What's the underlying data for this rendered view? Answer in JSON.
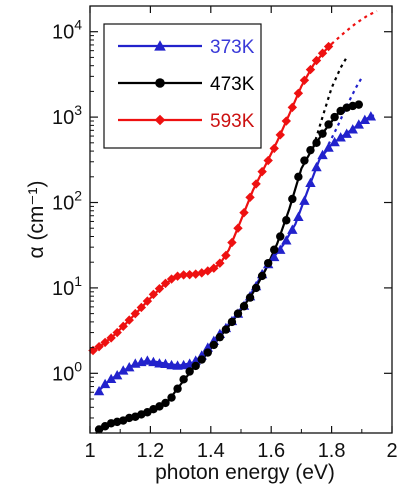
{
  "chart_data": {
    "type": "scatter",
    "xlabel": "photon energy (eV)",
    "ylabel": "α (cm⁻¹)",
    "x_scale": "linear",
    "y_scale": "log",
    "xlim": [
      1.0,
      2.0
    ],
    "ylim": [
      0.2,
      20000
    ],
    "x_ticks": [
      1.0,
      1.2,
      1.4,
      1.6,
      1.8,
      2.0
    ],
    "x_tick_labels": [
      "1",
      "1.2",
      "1.4",
      "1.6",
      "1.8",
      "2"
    ],
    "y_ticks": [
      1,
      10,
      100,
      1000,
      10000
    ],
    "y_tick_labels": [
      {
        "base": "10",
        "exp": "0"
      },
      {
        "base": "10",
        "exp": "1"
      },
      {
        "base": "10",
        "exp": "2"
      },
      {
        "base": "10",
        "exp": "3"
      },
      {
        "base": "10",
        "exp": "4"
      }
    ],
    "grid": false,
    "legend_position": "top-left",
    "series": [
      {
        "name": "373K",
        "color": "#2222cc",
        "label_color": "#3a3ad8",
        "marker": "triangle",
        "points": [
          [
            1.03,
            0.62
          ],
          [
            1.05,
            0.75
          ],
          [
            1.07,
            0.86
          ],
          [
            1.09,
            0.95
          ],
          [
            1.11,
            1.08
          ],
          [
            1.13,
            1.18
          ],
          [
            1.15,
            1.3
          ],
          [
            1.17,
            1.36
          ],
          [
            1.19,
            1.41
          ],
          [
            1.21,
            1.36
          ],
          [
            1.23,
            1.31
          ],
          [
            1.25,
            1.29
          ],
          [
            1.27,
            1.25
          ],
          [
            1.29,
            1.23
          ],
          [
            1.31,
            1.25
          ],
          [
            1.33,
            1.3
          ],
          [
            1.35,
            1.41
          ],
          [
            1.37,
            1.62
          ],
          [
            1.39,
            2.0
          ],
          [
            1.41,
            2.4
          ],
          [
            1.43,
            2.9
          ],
          [
            1.45,
            3.4
          ],
          [
            1.47,
            4.1
          ],
          [
            1.49,
            5.0
          ],
          [
            1.51,
            6.2
          ],
          [
            1.53,
            8.0
          ],
          [
            1.55,
            10.5
          ],
          [
            1.57,
            14.5
          ],
          [
            1.59,
            19.0
          ],
          [
            1.61,
            23.0
          ],
          [
            1.63,
            28.0
          ],
          [
            1.65,
            36.0
          ],
          [
            1.67,
            48.0
          ],
          [
            1.69,
            68.0
          ],
          [
            1.71,
            105.0
          ],
          [
            1.73,
            170.0
          ],
          [
            1.75,
            260.0
          ],
          [
            1.77,
            360.0
          ],
          [
            1.79,
            440.0
          ],
          [
            1.81,
            510.0
          ],
          [
            1.83,
            580.0
          ],
          [
            1.85,
            640.0
          ],
          [
            1.87,
            720.0
          ],
          [
            1.89,
            820.0
          ],
          [
            1.91,
            930.0
          ],
          [
            1.93,
            1020.0
          ]
        ],
        "fit": [
          [
            1.02,
            0.58
          ],
          [
            1.06,
            0.8
          ],
          [
            1.1,
            1.02
          ],
          [
            1.14,
            1.23
          ],
          [
            1.18,
            1.38
          ],
          [
            1.22,
            1.36
          ],
          [
            1.26,
            1.28
          ],
          [
            1.3,
            1.24
          ],
          [
            1.34,
            1.33
          ],
          [
            1.37,
            1.6
          ],
          [
            1.4,
            2.15
          ],
          [
            1.44,
            3.1
          ],
          [
            1.48,
            4.5
          ],
          [
            1.52,
            7.0
          ],
          [
            1.56,
            12.5
          ],
          [
            1.6,
            21.0
          ],
          [
            1.64,
            32.0
          ],
          [
            1.68,
            56.0
          ],
          [
            1.72,
            135.0
          ],
          [
            1.76,
            320.0
          ],
          [
            1.8,
            480.0
          ],
          [
            1.84,
            610.0
          ],
          [
            1.88,
            770.0
          ],
          [
            1.92,
            980.0
          ],
          [
            1.94,
            1050.0
          ]
        ],
        "extrapolation": [
          [
            1.79,
            480.0
          ],
          [
            1.82,
            780.0
          ],
          [
            1.85,
            1350.0
          ],
          [
            1.88,
            2200.0
          ],
          [
            1.9,
            2900.0
          ]
        ]
      },
      {
        "name": "473K",
        "color": "#000000",
        "label_color": "#000000",
        "marker": "circle",
        "points": [
          [
            1.03,
            0.22
          ],
          [
            1.05,
            0.24
          ],
          [
            1.07,
            0.26
          ],
          [
            1.09,
            0.27
          ],
          [
            1.11,
            0.28
          ],
          [
            1.13,
            0.3
          ],
          [
            1.15,
            0.31
          ],
          [
            1.17,
            0.33
          ],
          [
            1.19,
            0.35
          ],
          [
            1.21,
            0.38
          ],
          [
            1.23,
            0.41
          ],
          [
            1.25,
            0.45
          ],
          [
            1.27,
            0.52
          ],
          [
            1.29,
            0.66
          ],
          [
            1.31,
            0.85
          ],
          [
            1.33,
            1.05
          ],
          [
            1.35,
            1.22
          ],
          [
            1.37,
            1.45
          ],
          [
            1.39,
            1.75
          ],
          [
            1.41,
            2.15
          ],
          [
            1.43,
            2.65
          ],
          [
            1.45,
            3.25
          ],
          [
            1.47,
            4.0
          ],
          [
            1.49,
            5.0
          ],
          [
            1.51,
            6.1
          ],
          [
            1.53,
            7.7
          ],
          [
            1.55,
            10.0
          ],
          [
            1.57,
            13.8
          ],
          [
            1.59,
            19.5
          ],
          [
            1.61,
            28.0
          ],
          [
            1.63,
            40.0
          ],
          [
            1.65,
            62.0
          ],
          [
            1.67,
            110.0
          ],
          [
            1.69,
            200.0
          ],
          [
            1.71,
            310.0
          ],
          [
            1.73,
            410.0
          ],
          [
            1.75,
            500.0
          ],
          [
            1.77,
            640.0
          ],
          [
            1.79,
            820.0
          ],
          [
            1.81,
            1000.0
          ],
          [
            1.83,
            1180.0
          ],
          [
            1.85,
            1290.0
          ],
          [
            1.87,
            1350.0
          ],
          [
            1.89,
            1400.0
          ]
        ],
        "fit": [
          [
            1.02,
            0.2
          ],
          [
            1.06,
            0.24
          ],
          [
            1.1,
            0.27
          ],
          [
            1.14,
            0.3
          ],
          [
            1.18,
            0.34
          ],
          [
            1.22,
            0.39
          ],
          [
            1.26,
            0.48
          ],
          [
            1.3,
            0.74
          ],
          [
            1.34,
            1.12
          ],
          [
            1.38,
            1.58
          ],
          [
            1.42,
            2.4
          ],
          [
            1.46,
            3.6
          ],
          [
            1.5,
            5.5
          ],
          [
            1.54,
            8.8
          ],
          [
            1.58,
            16.0
          ],
          [
            1.62,
            33.0
          ],
          [
            1.66,
            84.0
          ],
          [
            1.7,
            250.0
          ],
          [
            1.74,
            450.0
          ],
          [
            1.78,
            720.0
          ],
          [
            1.82,
            1090.0
          ],
          [
            1.86,
            1320.0
          ],
          [
            1.9,
            1420.0
          ]
        ],
        "extrapolation": [
          [
            1.74,
            450.0
          ],
          [
            1.77,
            1000.0
          ],
          [
            1.8,
            2200.0
          ],
          [
            1.83,
            3800.0
          ],
          [
            1.85,
            5000.0
          ]
        ]
      },
      {
        "name": "593K",
        "color": "#ee1111",
        "label_color": "#cc1111",
        "marker": "diamond",
        "points": [
          [
            1.01,
            1.85
          ],
          [
            1.03,
            2.05
          ],
          [
            1.05,
            2.3
          ],
          [
            1.07,
            2.6
          ],
          [
            1.09,
            3.0
          ],
          [
            1.11,
            3.55
          ],
          [
            1.13,
            4.2
          ],
          [
            1.15,
            5.0
          ],
          [
            1.17,
            5.9
          ],
          [
            1.19,
            7.0
          ],
          [
            1.21,
            8.4
          ],
          [
            1.23,
            9.8
          ],
          [
            1.25,
            11.3
          ],
          [
            1.27,
            12.7
          ],
          [
            1.29,
            13.7
          ],
          [
            1.31,
            14.2
          ],
          [
            1.33,
            14.3
          ],
          [
            1.35,
            14.5
          ],
          [
            1.37,
            15.0
          ],
          [
            1.39,
            15.8
          ],
          [
            1.41,
            17.0
          ],
          [
            1.43,
            19.5
          ],
          [
            1.45,
            24.0
          ],
          [
            1.47,
            34.0
          ],
          [
            1.49,
            50.0
          ],
          [
            1.51,
            76.0
          ],
          [
            1.53,
            115.0
          ],
          [
            1.55,
            165.0
          ],
          [
            1.57,
            230.0
          ],
          [
            1.59,
            310.0
          ],
          [
            1.61,
            430.0
          ],
          [
            1.63,
            620.0
          ],
          [
            1.65,
            900.0
          ],
          [
            1.67,
            1300.0
          ],
          [
            1.69,
            1900.0
          ],
          [
            1.71,
            2700.0
          ],
          [
            1.73,
            3600.0
          ],
          [
            1.75,
            4600.0
          ],
          [
            1.77,
            5600.0
          ],
          [
            1.79,
            6700.0
          ]
        ],
        "fit": [
          [
            1.0,
            1.75
          ],
          [
            1.04,
            2.15
          ],
          [
            1.08,
            2.8
          ],
          [
            1.12,
            3.85
          ],
          [
            1.16,
            5.4
          ],
          [
            1.2,
            7.6
          ],
          [
            1.24,
            10.5
          ],
          [
            1.28,
            13.2
          ],
          [
            1.32,
            14.3
          ],
          [
            1.36,
            14.7
          ],
          [
            1.4,
            16.3
          ],
          [
            1.43,
            19.0
          ],
          [
            1.46,
            28.0
          ],
          [
            1.5,
            62.0
          ],
          [
            1.54,
            140.0
          ],
          [
            1.58,
            270.0
          ],
          [
            1.62,
            520.0
          ],
          [
            1.66,
            1080.0
          ],
          [
            1.7,
            2300.0
          ],
          [
            1.74,
            4100.0
          ],
          [
            1.78,
            6100.0
          ],
          [
            1.8,
            7200.0
          ]
        ],
        "extrapolation": [
          [
            1.8,
            7200.0
          ],
          [
            1.84,
            9600.0
          ],
          [
            1.88,
            12500.0
          ],
          [
            1.92,
            15500.0
          ],
          [
            1.95,
            17500.0
          ]
        ]
      }
    ]
  }
}
